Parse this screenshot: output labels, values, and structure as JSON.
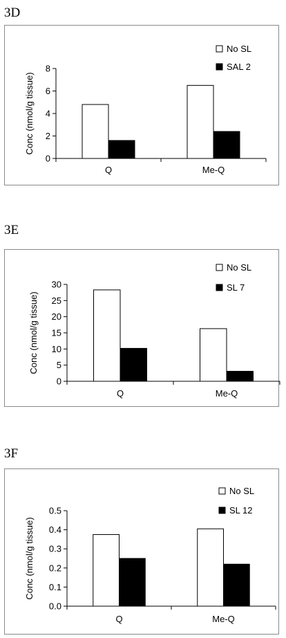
{
  "chart_data": [
    {
      "panel_label": "3D",
      "type": "bar",
      "categories": [
        "Q",
        "Me-Q"
      ],
      "series": [
        {
          "name": "No SL",
          "values": [
            4.8,
            6.5
          ],
          "fill": "#ffffff"
        },
        {
          "name": "SAL 2",
          "values": [
            1.6,
            2.4
          ],
          "fill": "#000000"
        }
      ],
      "ylabel": "Conc (nmol/g tissue)",
      "ylim": [
        0,
        8
      ],
      "yticks": [
        "0",
        "2",
        "4",
        "6",
        "8"
      ],
      "ytick_values": [
        0,
        2,
        4,
        6,
        8
      ],
      "legend_position": "top-right",
      "grid": false
    },
    {
      "panel_label": "3E",
      "type": "bar",
      "categories": [
        "Q",
        "Me-Q"
      ],
      "series": [
        {
          "name": "No SL",
          "values": [
            28.3,
            16.3
          ],
          "fill": "#ffffff"
        },
        {
          "name": "SL 7",
          "values": [
            10.2,
            3.1
          ],
          "fill": "#000000"
        }
      ],
      "ylabel": "Conc (nmol/g tissue)",
      "ylim": [
        0,
        30
      ],
      "yticks": [
        "0",
        "5",
        "10",
        "15",
        "20",
        "25",
        "30"
      ],
      "ytick_values": [
        0,
        5,
        10,
        15,
        20,
        25,
        30
      ],
      "legend_position": "top-right",
      "grid": false
    },
    {
      "panel_label": "3F",
      "type": "bar",
      "categories": [
        "Q",
        "Me-Q"
      ],
      "series": [
        {
          "name": "No SL",
          "values": [
            0.375,
            0.405
          ],
          "fill": "#ffffff"
        },
        {
          "name": "SL 12",
          "values": [
            0.25,
            0.22
          ],
          "fill": "#000000"
        }
      ],
      "ylabel": "Conc (nmol/g tissue)",
      "ylim": [
        0,
        0.5
      ],
      "yticks": [
        "0.0",
        "0.1",
        "0.2",
        "0.3",
        "0.4",
        "0.5"
      ],
      "ytick_values": [
        0,
        0.1,
        0.2,
        0.3,
        0.4,
        0.5
      ],
      "legend_position": "top-right",
      "grid": false
    }
  ]
}
